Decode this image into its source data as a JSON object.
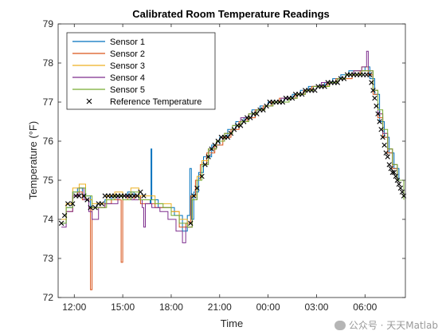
{
  "chart_data": {
    "type": "line",
    "title": "Calibrated Room Temperature Readings",
    "xlabel": "Time",
    "ylabel": "Temperature (°F)",
    "x_unit": "hours (clock time, 11:00 to 08:30 next day)",
    "xlim": [
      11.0,
      32.5
    ],
    "ylim": [
      72,
      79
    ],
    "yticks": [
      72,
      73,
      74,
      75,
      76,
      77,
      78,
      79
    ],
    "xticks": [
      {
        "value": 12,
        "label": "12:00"
      },
      {
        "value": 15,
        "label": "15:00"
      },
      {
        "value": 18,
        "label": "18:00"
      },
      {
        "value": 21,
        "label": "21:00"
      },
      {
        "value": 24,
        "label": "00:00"
      },
      {
        "value": 27,
        "label": "03:00"
      },
      {
        "value": 30,
        "label": "06:00"
      }
    ],
    "legend_position": "top-left",
    "series": [
      {
        "name": "Sensor 1",
        "color": "#0072BD",
        "x": [
          11.2,
          11.5,
          11.9,
          12.2,
          12.5,
          13.0,
          13.4,
          13.9,
          14.3,
          14.8,
          15.3,
          15.7,
          16.1,
          16.5,
          16.7,
          16.75,
          16.8,
          17.2,
          17.7,
          18.2,
          18.7,
          19.0,
          19.15,
          19.25,
          19.4,
          19.7,
          20.0,
          20.5,
          21.0,
          21.5,
          22.0,
          22.5,
          23.0,
          23.5,
          24.0,
          24.5,
          25.0,
          25.5,
          26.0,
          26.5,
          27.0,
          27.5,
          28.0,
          28.5,
          29.0,
          29.5,
          30.0,
          30.3,
          30.6,
          30.9,
          31.2,
          31.5,
          31.8,
          32.1,
          32.4
        ],
        "y": [
          73.9,
          74.3,
          74.7,
          74.8,
          74.6,
          74.3,
          74.4,
          74.5,
          74.6,
          74.6,
          74.7,
          74.6,
          74.5,
          74.5,
          74.4,
          75.8,
          74.5,
          74.3,
          74.3,
          74.1,
          73.7,
          74.1,
          75.3,
          74.0,
          74.7,
          75.2,
          75.6,
          75.9,
          76.1,
          76.3,
          76.5,
          76.6,
          76.8,
          76.9,
          77.0,
          77.0,
          77.1,
          77.2,
          77.3,
          77.4,
          77.4,
          77.5,
          77.6,
          77.7,
          77.8,
          77.8,
          77.9,
          77.6,
          77.2,
          76.5,
          76.1,
          75.7,
          75.3,
          75.0,
          74.7
        ]
      },
      {
        "name": "Sensor 2",
        "color": "#D95319",
        "x": [
          11.2,
          11.5,
          11.9,
          12.2,
          12.5,
          12.9,
          13.0,
          13.1,
          13.4,
          13.9,
          14.3,
          14.8,
          14.9,
          15.0,
          15.1,
          15.3,
          15.7,
          16.1,
          16.5,
          17.0,
          17.5,
          18.0,
          18.5,
          18.9,
          19.2,
          19.5,
          19.8,
          20.2,
          20.7,
          21.2,
          21.7,
          22.2,
          22.7,
          23.2,
          23.7,
          24.2,
          24.7,
          25.2,
          25.7,
          26.2,
          26.7,
          27.2,
          27.7,
          28.2,
          28.7,
          29.2,
          29.7,
          30.2,
          30.5,
          30.8,
          31.1,
          31.4,
          31.7,
          32.0,
          32.4
        ],
        "y": [
          74.0,
          74.2,
          74.6,
          74.7,
          74.5,
          74.3,
          72.2,
          74.3,
          74.3,
          74.4,
          74.5,
          74.5,
          72.9,
          74.6,
          74.6,
          74.5,
          74.6,
          74.4,
          74.4,
          74.3,
          74.3,
          74.2,
          73.8,
          73.9,
          74.6,
          75.0,
          75.4,
          75.7,
          75.9,
          76.1,
          76.3,
          76.5,
          76.6,
          76.8,
          76.9,
          77.0,
          77.1,
          77.1,
          77.2,
          77.3,
          77.4,
          77.4,
          77.5,
          77.6,
          77.6,
          77.7,
          77.8,
          77.7,
          77.2,
          76.6,
          76.1,
          75.7,
          75.3,
          75.0,
          74.6
        ]
      },
      {
        "name": "Sensor 3",
        "color": "#EDB120",
        "x": [
          11.2,
          11.5,
          11.9,
          12.3,
          12.7,
          13.1,
          13.6,
          14.0,
          14.5,
          15.0,
          15.5,
          16.0,
          16.5,
          17.0,
          17.5,
          18.0,
          18.5,
          19.0,
          19.3,
          19.6,
          19.9,
          20.3,
          20.8,
          21.3,
          21.8,
          22.3,
          22.8,
          23.3,
          23.8,
          24.3,
          24.8,
          25.3,
          25.8,
          26.3,
          26.8,
          27.3,
          27.8,
          28.3,
          28.8,
          29.3,
          29.8,
          30.2,
          30.5,
          30.8,
          31.1,
          31.4,
          31.7,
          32.0,
          32.4
        ],
        "y": [
          74.0,
          74.4,
          74.8,
          74.9,
          74.5,
          74.4,
          74.4,
          74.6,
          74.7,
          74.6,
          74.8,
          74.6,
          74.6,
          74.4,
          74.4,
          74.2,
          74.0,
          73.8,
          74.6,
          75.1,
          75.5,
          75.8,
          76.0,
          76.2,
          76.4,
          76.5,
          76.7,
          76.8,
          76.9,
          77.0,
          77.0,
          77.1,
          77.2,
          77.3,
          77.4,
          77.4,
          77.5,
          77.6,
          77.7,
          77.8,
          77.9,
          77.8,
          77.3,
          76.7,
          76.2,
          75.8,
          75.4,
          75.0,
          74.5
        ]
      },
      {
        "name": "Sensor 4",
        "color": "#7E2F8E",
        "x": [
          11.2,
          11.5,
          11.9,
          12.3,
          12.6,
          12.9,
          13.1,
          13.5,
          13.9,
          14.3,
          14.7,
          15.1,
          15.5,
          15.9,
          16.2,
          16.3,
          16.4,
          16.8,
          17.3,
          17.8,
          18.3,
          18.7,
          18.9,
          19.3,
          19.6,
          19.9,
          20.3,
          20.8,
          21.3,
          21.8,
          22.3,
          22.8,
          23.3,
          23.8,
          24.3,
          24.8,
          25.3,
          25.8,
          26.3,
          26.8,
          27.3,
          27.8,
          28.3,
          28.8,
          29.3,
          29.8,
          30.1,
          30.2,
          30.5,
          30.8,
          31.1,
          31.4,
          31.7,
          32.0,
          32.4
        ],
        "y": [
          73.8,
          74.2,
          74.6,
          74.8,
          74.5,
          74.2,
          74.0,
          74.3,
          74.4,
          74.4,
          74.6,
          74.6,
          74.5,
          74.5,
          74.3,
          73.8,
          74.4,
          74.3,
          74.2,
          74.0,
          73.7,
          73.4,
          73.8,
          74.5,
          75.0,
          75.4,
          75.8,
          76.0,
          76.2,
          76.4,
          76.6,
          76.7,
          76.8,
          76.9,
          77.0,
          77.1,
          77.1,
          77.2,
          77.3,
          77.4,
          77.5,
          77.5,
          77.6,
          77.7,
          77.8,
          77.9,
          78.3,
          77.8,
          77.3,
          76.7,
          76.2,
          75.8,
          75.4,
          75.0,
          74.6
        ]
      },
      {
        "name": "Sensor 5",
        "color": "#77AC30",
        "x": [
          11.2,
          11.5,
          11.9,
          12.3,
          12.7,
          13.1,
          13.6,
          14.0,
          14.5,
          15.0,
          15.5,
          16.0,
          16.5,
          17.0,
          17.5,
          18.0,
          18.5,
          19.0,
          19.3,
          19.6,
          19.9,
          20.3,
          20.8,
          21.3,
          21.8,
          22.3,
          22.8,
          23.3,
          23.8,
          24.3,
          24.8,
          25.3,
          25.8,
          26.3,
          26.8,
          27.3,
          27.8,
          28.3,
          28.8,
          29.3,
          29.8,
          30.2,
          30.5,
          30.8,
          31.1,
          31.4,
          31.7,
          32.0,
          32.4
        ],
        "y": [
          73.9,
          74.3,
          74.7,
          74.8,
          74.6,
          74.3,
          74.3,
          74.5,
          74.6,
          74.5,
          74.7,
          74.5,
          74.5,
          74.4,
          74.3,
          74.1,
          73.9,
          73.8,
          74.5,
          75.0,
          75.4,
          75.8,
          76.0,
          76.2,
          76.4,
          76.5,
          76.7,
          76.8,
          76.9,
          77.0,
          77.0,
          77.1,
          77.2,
          77.3,
          77.4,
          77.4,
          77.5,
          77.6,
          77.7,
          77.7,
          77.8,
          77.8,
          77.3,
          76.8,
          76.3,
          75.8,
          75.4,
          75.0,
          74.5
        ]
      }
    ],
    "reference": {
      "name": "Reference Temperature",
      "marker": "x",
      "color": "#000000",
      "x": [
        11.2,
        11.4,
        11.6,
        11.9,
        12.1,
        12.3,
        12.6,
        12.8,
        13.0,
        13.3,
        13.5,
        13.7,
        13.9,
        14.1,
        14.3,
        14.5,
        14.7,
        14.9,
        15.1,
        15.3,
        15.5,
        15.7,
        15.9,
        16.1,
        16.3,
        19.2,
        19.4,
        19.6,
        19.9,
        20.1,
        20.3,
        20.5,
        20.7,
        20.9,
        21.1,
        21.3,
        21.5,
        21.7,
        21.9,
        22.1,
        22.3,
        22.5,
        22.7,
        22.9,
        23.1,
        23.3,
        23.5,
        23.7,
        23.9,
        24.1,
        24.3,
        24.5,
        24.7,
        24.9,
        25.1,
        25.3,
        25.5,
        25.7,
        25.9,
        26.1,
        26.3,
        26.5,
        26.7,
        26.9,
        27.1,
        27.3,
        27.5,
        27.7,
        27.9,
        28.1,
        28.3,
        28.5,
        28.7,
        28.9,
        29.1,
        29.3,
        29.5,
        29.7,
        29.9,
        30.1,
        30.3,
        30.4,
        30.5,
        30.6,
        30.7,
        30.8,
        30.9,
        31.0,
        31.1,
        31.2,
        31.3,
        31.4,
        31.5,
        31.6,
        31.7,
        31.8,
        31.9,
        32.0,
        32.1,
        32.2,
        32.3,
        32.4
      ],
      "y": [
        73.9,
        74.1,
        74.4,
        74.4,
        74.6,
        74.6,
        74.6,
        74.5,
        74.3,
        74.3,
        74.4,
        74.4,
        74.6,
        74.6,
        74.6,
        74.6,
        74.6,
        74.6,
        74.6,
        74.6,
        74.6,
        74.6,
        74.6,
        74.7,
        74.6,
        73.9,
        74.6,
        74.8,
        75.1,
        75.4,
        75.6,
        75.8,
        75.9,
        76.0,
        76.1,
        76.1,
        76.1,
        76.2,
        76.3,
        76.4,
        76.4,
        76.5,
        76.6,
        76.6,
        76.7,
        76.7,
        76.8,
        76.8,
        76.9,
        77.0,
        77.0,
        77.0,
        77.0,
        77.0,
        77.1,
        77.1,
        77.1,
        77.2,
        77.2,
        77.2,
        77.3,
        77.3,
        77.3,
        77.3,
        77.4,
        77.4,
        77.4,
        77.5,
        77.5,
        77.5,
        77.5,
        77.6,
        77.6,
        77.7,
        77.7,
        77.7,
        77.7,
        77.7,
        77.7,
        77.7,
        77.7,
        77.5,
        77.3,
        77.1,
        76.9,
        76.7,
        76.5,
        76.3,
        76.1,
        75.9,
        75.7,
        75.6,
        75.4,
        75.3,
        75.2,
        75.2,
        75.1,
        75.0,
        74.9,
        74.8,
        74.7,
        74.6
      ]
    }
  },
  "watermark": {
    "text": "公众号 · 天天Matlab",
    "icon": "wechat-icon"
  }
}
